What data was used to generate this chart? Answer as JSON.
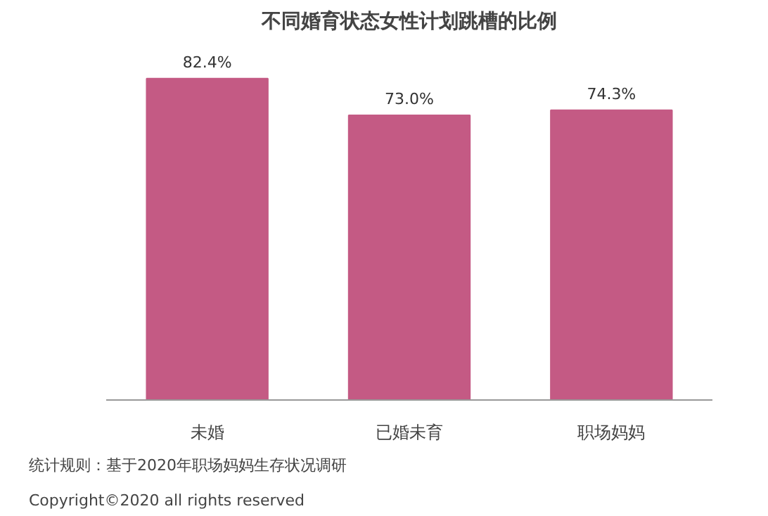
{
  "chart_data": {
    "type": "bar",
    "title": "不同婚育状态女性计划跳槽的比例",
    "categories": [
      "未婚",
      "已婚未育",
      "职场妈妈"
    ],
    "values": [
      82.4,
      73.0,
      74.3
    ],
    "value_labels": [
      "82.4%",
      "73.0%",
      "74.3%"
    ],
    "color": "#c45a84",
    "tick_labels": "x",
    "grid": false,
    "annotations": [
      "统计规则：基于2020年职场妈妈生存状况调研",
      "Copyright©2020 all rights reserved"
    ]
  }
}
